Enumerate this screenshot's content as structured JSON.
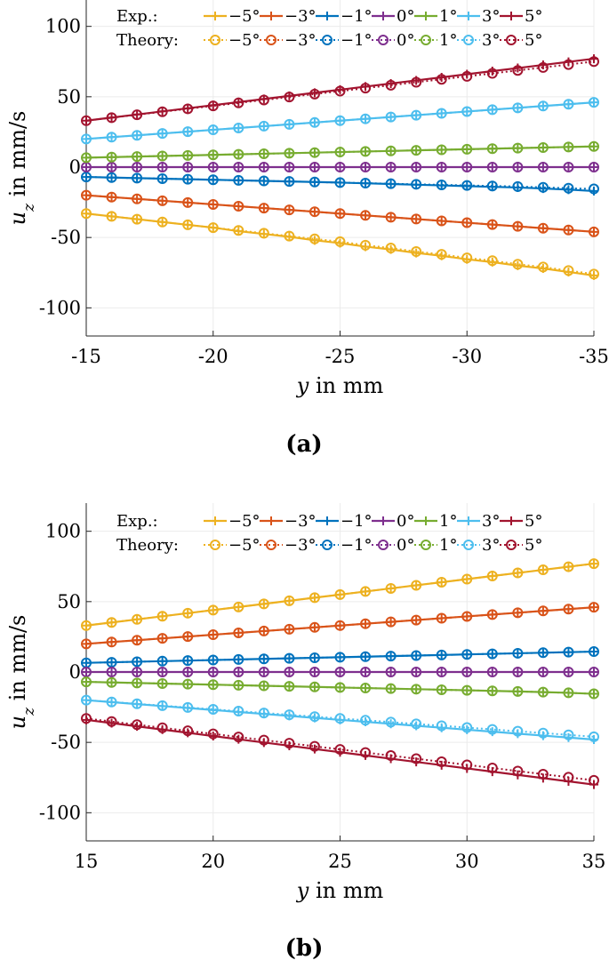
{
  "colors": {
    "-5": "#EDB120",
    "-3": "#D95319",
    "-1": "#0072BD",
    "0": "#7E2F8E",
    "1": "#77AC30",
    "3": "#4DBEEE",
    "5": "#A2142F"
  },
  "chart_data": [
    {
      "type": "line",
      "panel_label": "(a)",
      "xlabel_var": "y",
      "xlabel_rest": " in mm",
      "ylabel_var": "u",
      "ylabel_sub": "z",
      "ylabel_rest": " in mm/s",
      "xlim": [
        -15,
        -35
      ],
      "ylim": [
        -120,
        120
      ],
      "xticks": [
        -15,
        -20,
        -25,
        -30,
        -35
      ],
      "xtick_labels": [
        "-15",
        "-20",
        "-25",
        "-30",
        "-35"
      ],
      "yticks": [
        100,
        50,
        0,
        -50,
        -100
      ],
      "ytick_labels": [
        "100",
        "50",
        "0",
        "-50",
        "-100"
      ],
      "legend": {
        "exp_label": "Exp.:",
        "theory_label": "Theory:",
        "entries": [
          "−5°",
          "−3°",
          "−1°",
          "0°",
          "1°",
          "3°",
          "5°"
        ]
      },
      "x": [
        -15,
        -16,
        -17,
        -18,
        -19,
        -20,
        -21,
        -22,
        -23,
        -24,
        -25,
        -26,
        -27,
        -28,
        -29,
        -30,
        -31,
        -32,
        -33,
        -34,
        -35
      ],
      "series": [
        {
          "name": "−5°",
          "key": "-5",
          "exp": [
            -33,
            -35,
            -37,
            -39,
            -41,
            -43,
            -45.5,
            -47.5,
            -49.5,
            -52,
            -54,
            -56.5,
            -58.5,
            -61,
            -63,
            -65.5,
            -67.5,
            -70,
            -72,
            -74.5,
            -77
          ],
          "theory": [
            -33,
            -35,
            -37,
            -39,
            -41,
            -43,
            -45,
            -47,
            -49,
            -51,
            -53,
            -55.5,
            -57.5,
            -60,
            -62,
            -64.5,
            -66.5,
            -69,
            -71,
            -73.5,
            -76
          ]
        },
        {
          "name": "−3°",
          "key": "-3",
          "exp": [
            -20,
            -21.3,
            -22.6,
            -23.9,
            -25.2,
            -26.5,
            -27.8,
            -29.1,
            -30.4,
            -31.7,
            -33,
            -34.3,
            -35.6,
            -36.9,
            -38.2,
            -39.5,
            -40.8,
            -42.1,
            -43.4,
            -44.7,
            -46
          ],
          "theory": [
            -20,
            -21.3,
            -22.6,
            -23.9,
            -25.2,
            -26.5,
            -27.8,
            -29.1,
            -30.4,
            -31.7,
            -33,
            -34.3,
            -35.6,
            -36.9,
            -38.2,
            -39.5,
            -40.8,
            -42.1,
            -43.4,
            -44.7,
            -46
          ]
        },
        {
          "name": "−1°",
          "key": "-1",
          "exp": [
            -7,
            -7.4,
            -7.8,
            -8.2,
            -8.6,
            -9,
            -9.4,
            -9.8,
            -10.2,
            -10.6,
            -11,
            -11.5,
            -12,
            -12.5,
            -13,
            -13.5,
            -14,
            -14.5,
            -15.2,
            -16,
            -17
          ],
          "theory": [
            -7,
            -7.4,
            -7.8,
            -8.2,
            -8.6,
            -9,
            -9.4,
            -9.8,
            -10.2,
            -10.6,
            -11,
            -11.4,
            -11.8,
            -12.2,
            -12.6,
            -13,
            -13.4,
            -13.8,
            -14.4,
            -15,
            -15.5
          ]
        },
        {
          "name": "0°",
          "key": "0",
          "exp": [
            0,
            0,
            0,
            0,
            0,
            0,
            0,
            0,
            0,
            0,
            0,
            0,
            0,
            0,
            0,
            0,
            0,
            0,
            0,
            0,
            0
          ],
          "theory": [
            0,
            0,
            0,
            0,
            0,
            0,
            0,
            0,
            0,
            0,
            0,
            0,
            0,
            0,
            0,
            0,
            0,
            0,
            0,
            0,
            0
          ]
        },
        {
          "name": "1°",
          "key": "1",
          "exp": [
            6.7,
            7.1,
            7.5,
            7.9,
            8.3,
            8.7,
            9.1,
            9.5,
            9.9,
            10.3,
            10.7,
            11.1,
            11.5,
            11.9,
            12.3,
            12.7,
            13.1,
            13.5,
            13.9,
            14.3,
            14.7
          ],
          "theory": [
            6.7,
            7.1,
            7.5,
            7.9,
            8.3,
            8.7,
            9.1,
            9.5,
            9.9,
            10.3,
            10.7,
            11.1,
            11.5,
            11.9,
            12.3,
            12.7,
            13.1,
            13.5,
            13.9,
            14.3,
            14.7
          ]
        },
        {
          "name": "3°",
          "key": "3",
          "exp": [
            20,
            21.3,
            22.6,
            23.9,
            25.2,
            26.5,
            27.8,
            29.1,
            30.4,
            31.7,
            33,
            34.3,
            35.6,
            36.9,
            38.2,
            39.5,
            40.8,
            42.1,
            43.4,
            44.7,
            46
          ],
          "theory": [
            20,
            21.3,
            22.6,
            23.9,
            25.2,
            26.5,
            27.8,
            29.1,
            30.4,
            31.7,
            33,
            34.3,
            35.6,
            36.9,
            38.2,
            39.5,
            40.8,
            42.1,
            43.4,
            44.7,
            46
          ]
        },
        {
          "name": "5°",
          "key": "5",
          "exp": [
            33,
            35.2,
            37.4,
            39.6,
            41.8,
            44,
            46.2,
            48.4,
            50.6,
            52.8,
            55,
            57.2,
            59.4,
            61.6,
            63.8,
            66,
            68.2,
            70.4,
            72.6,
            74.8,
            77
          ],
          "theory": [
            33,
            35.1,
            37.2,
            39.3,
            41.4,
            43.5,
            45.6,
            47.7,
            49.8,
            51.9,
            54,
            56.1,
            58.2,
            60.3,
            62.4,
            64.5,
            66.6,
            68.7,
            70.8,
            72.9,
            75
          ]
        }
      ]
    },
    {
      "type": "line",
      "panel_label": "(b)",
      "xlabel_var": "y",
      "xlabel_rest": " in mm",
      "ylabel_var": "u",
      "ylabel_sub": "z",
      "ylabel_rest": " in mm/s",
      "xlim": [
        15,
        35
      ],
      "ylim": [
        -120,
        120
      ],
      "xticks": [
        15,
        20,
        25,
        30,
        35
      ],
      "xtick_labels": [
        "15",
        "20",
        "25",
        "30",
        "35"
      ],
      "yticks": [
        100,
        50,
        0,
        -50,
        -100
      ],
      "ytick_labels": [
        "100",
        "50",
        "0",
        "-50",
        "-100"
      ],
      "legend": {
        "exp_label": "Exp.:",
        "theory_label": "Theory:",
        "entries": [
          "−5°",
          "−3°",
          "−1°",
          "0°",
          "1°",
          "3°",
          "5°"
        ]
      },
      "x": [
        15,
        16,
        17,
        18,
        19,
        20,
        21,
        22,
        23,
        24,
        25,
        26,
        27,
        28,
        29,
        30,
        31,
        32,
        33,
        34,
        35
      ],
      "series": [
        {
          "name": "−5°",
          "key": "-5",
          "exp": [
            33,
            35.2,
            37.4,
            39.6,
            41.8,
            44,
            46.2,
            48.4,
            50.6,
            52.8,
            55,
            57.2,
            59.4,
            61.6,
            63.8,
            66,
            68.2,
            70.4,
            72.6,
            74.8,
            77
          ],
          "theory": [
            33,
            35.2,
            37.4,
            39.6,
            41.8,
            44,
            46.2,
            48.4,
            50.6,
            52.8,
            55,
            57.2,
            59.4,
            61.6,
            63.8,
            66,
            68.2,
            70.4,
            72.6,
            74.8,
            77
          ]
        },
        {
          "name": "−3°",
          "key": "-3",
          "exp": [
            20,
            21.3,
            22.6,
            23.9,
            25.2,
            26.5,
            27.8,
            29.1,
            30.4,
            31.7,
            33,
            34.3,
            35.6,
            36.9,
            38.2,
            39.5,
            40.8,
            42.1,
            43.4,
            44.7,
            46
          ],
          "theory": [
            20,
            21.3,
            22.6,
            23.9,
            25.2,
            26.5,
            27.8,
            29.1,
            30.4,
            31.7,
            33,
            34.3,
            35.6,
            36.9,
            38.2,
            39.5,
            40.8,
            42.1,
            43.4,
            44.7,
            46
          ]
        },
        {
          "name": "−1°",
          "key": "-1",
          "exp": [
            6.5,
            6.9,
            7.3,
            7.7,
            8.1,
            8.5,
            8.9,
            9.3,
            9.7,
            10.1,
            10.5,
            10.9,
            11.3,
            11.7,
            12.1,
            12.5,
            12.9,
            13.3,
            13.7,
            14.1,
            14.5
          ],
          "theory": [
            6.5,
            6.9,
            7.3,
            7.7,
            8.1,
            8.5,
            8.9,
            9.3,
            9.7,
            10.1,
            10.5,
            10.9,
            11.3,
            11.7,
            12.1,
            12.5,
            12.9,
            13.3,
            13.7,
            14.1,
            14.5
          ]
        },
        {
          "name": "0°",
          "key": "0",
          "exp": [
            0,
            0,
            0,
            0,
            0,
            0,
            0,
            0,
            0,
            0,
            0,
            0,
            0,
            0,
            0,
            0,
            0,
            0,
            0,
            0,
            0
          ],
          "theory": [
            0,
            0,
            0,
            0,
            0,
            0,
            0,
            0,
            0,
            0,
            0,
            0,
            0,
            0,
            0,
            0,
            0,
            0,
            0,
            0,
            0
          ]
        },
        {
          "name": "1°",
          "key": "1",
          "exp": [
            -7,
            -7.4,
            -7.8,
            -8.2,
            -8.6,
            -9,
            -9.4,
            -9.8,
            -10.2,
            -10.6,
            -11,
            -11.4,
            -11.8,
            -12.2,
            -12.6,
            -13,
            -13.4,
            -13.8,
            -14.3,
            -14.8,
            -15.5
          ],
          "theory": [
            -7,
            -7.4,
            -7.8,
            -8.2,
            -8.6,
            -9,
            -9.4,
            -9.8,
            -10.2,
            -10.6,
            -11,
            -11.4,
            -11.8,
            -12.2,
            -12.6,
            -13,
            -13.4,
            -13.8,
            -14.3,
            -14.8,
            -15.5
          ]
        },
        {
          "name": "3°",
          "key": "3",
          "exp": [
            -20,
            -21.4,
            -22.8,
            -24.2,
            -25.6,
            -27,
            -28.4,
            -29.8,
            -31.2,
            -32.6,
            -34,
            -35.4,
            -36.8,
            -38.2,
            -39.6,
            -41,
            -42.4,
            -43.8,
            -45.2,
            -46.6,
            -48
          ],
          "theory": [
            -20,
            -21.3,
            -22.6,
            -23.9,
            -25.2,
            -26.5,
            -27.8,
            -29.1,
            -30.4,
            -31.7,
            -33,
            -34.3,
            -35.6,
            -36.9,
            -38.2,
            -39.5,
            -40.8,
            -42.1,
            -43.4,
            -44.7,
            -46
          ]
        },
        {
          "name": "5°",
          "key": "5",
          "exp": [
            -34,
            -36.3,
            -38.6,
            -40.9,
            -43.2,
            -45.5,
            -47.8,
            -50.1,
            -52.4,
            -54.7,
            -57,
            -59.3,
            -61.6,
            -63.9,
            -66.2,
            -68.5,
            -70.8,
            -73.1,
            -75.4,
            -77.7,
            -80
          ],
          "theory": [
            -33,
            -35.2,
            -37.4,
            -39.6,
            -41.8,
            -44,
            -46.2,
            -48.4,
            -50.6,
            -52.8,
            -55,
            -57.2,
            -59.4,
            -61.6,
            -63.8,
            -66,
            -68.2,
            -70.4,
            -72.6,
            -74.8,
            -77
          ]
        }
      ]
    }
  ]
}
